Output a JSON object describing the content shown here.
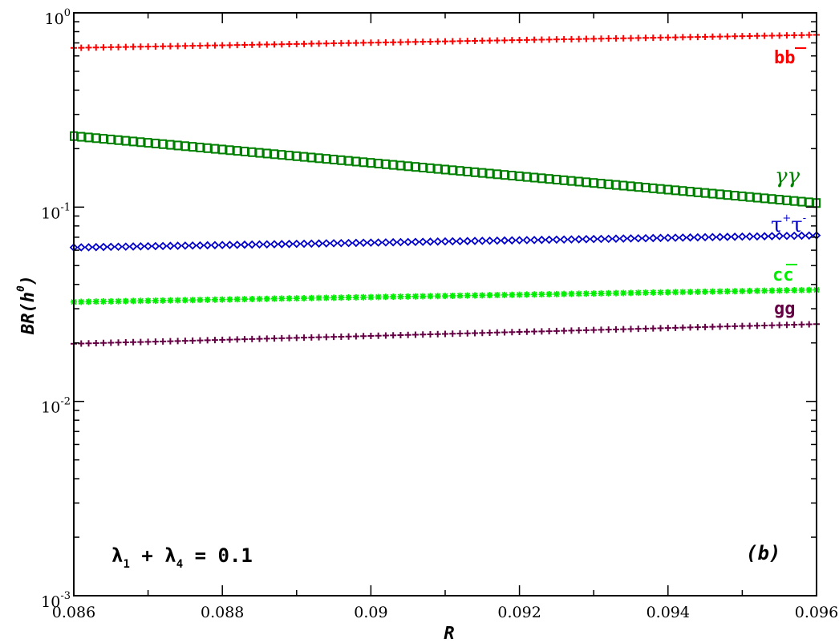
{
  "chart_data": {
    "type": "scatter",
    "xlabel": "R",
    "ylabel_main": "BR(h",
    "ylabel_sup": "0",
    "ylabel_close": ")",
    "x_range": [
      0.086,
      0.096
    ],
    "y_range": [
      0.001,
      1
    ],
    "y_scale": "log",
    "x_ticks": [
      {
        "value": 0.086,
        "label": "0.086"
      },
      {
        "value": 0.088,
        "label": "0.088"
      },
      {
        "value": 0.09,
        "label": "0.09"
      },
      {
        "value": 0.092,
        "label": "0.092"
      },
      {
        "value": 0.094,
        "label": "0.094"
      },
      {
        "value": 0.096,
        "label": "0.096"
      }
    ],
    "y_ticks": [
      {
        "value": 1,
        "base": "10",
        "exp": "0"
      },
      {
        "value": 0.1,
        "base": "10",
        "exp": "-1"
      },
      {
        "value": 0.01,
        "base": "10",
        "exp": "-2"
      },
      {
        "value": 0.001,
        "base": "10",
        "exp": "-3"
      }
    ],
    "series": [
      {
        "key": "bb",
        "label": "bb",
        "color": "#ff0000",
        "marker": "plus",
        "y_start": 0.66,
        "y_end": 0.77
      },
      {
        "key": "gammagamma",
        "label": "γγ",
        "color": "#008000",
        "marker": "square",
        "y_start": 0.232,
        "y_end": 0.105
      },
      {
        "key": "tautau",
        "label": "τ+τ-",
        "color": "#0000cc",
        "marker": "diamond",
        "y_start": 0.062,
        "y_end": 0.0715
      },
      {
        "key": "cc",
        "label": "cc",
        "color": "#00ee00",
        "marker": "star",
        "y_start": 0.0325,
        "y_end": 0.0375
      },
      {
        "key": "gg",
        "label": "gg",
        "color": "#660044",
        "marker": "plus",
        "y_start": 0.0198,
        "y_end": 0.025
      }
    ],
    "series_labels": {
      "bb": "bb",
      "gammagamma": "γγ",
      "tau": "τ",
      "tau_plus": "+",
      "tau_minus": "-",
      "cc": "cc",
      "gg": "gg"
    },
    "annotation": {
      "lambda": "λ",
      "sub1": "1",
      "plus": " + ",
      "sub4": "4",
      "equals": " = 0.1"
    },
    "panel_label": "(b)",
    "grid": false,
    "legend": "none"
  }
}
